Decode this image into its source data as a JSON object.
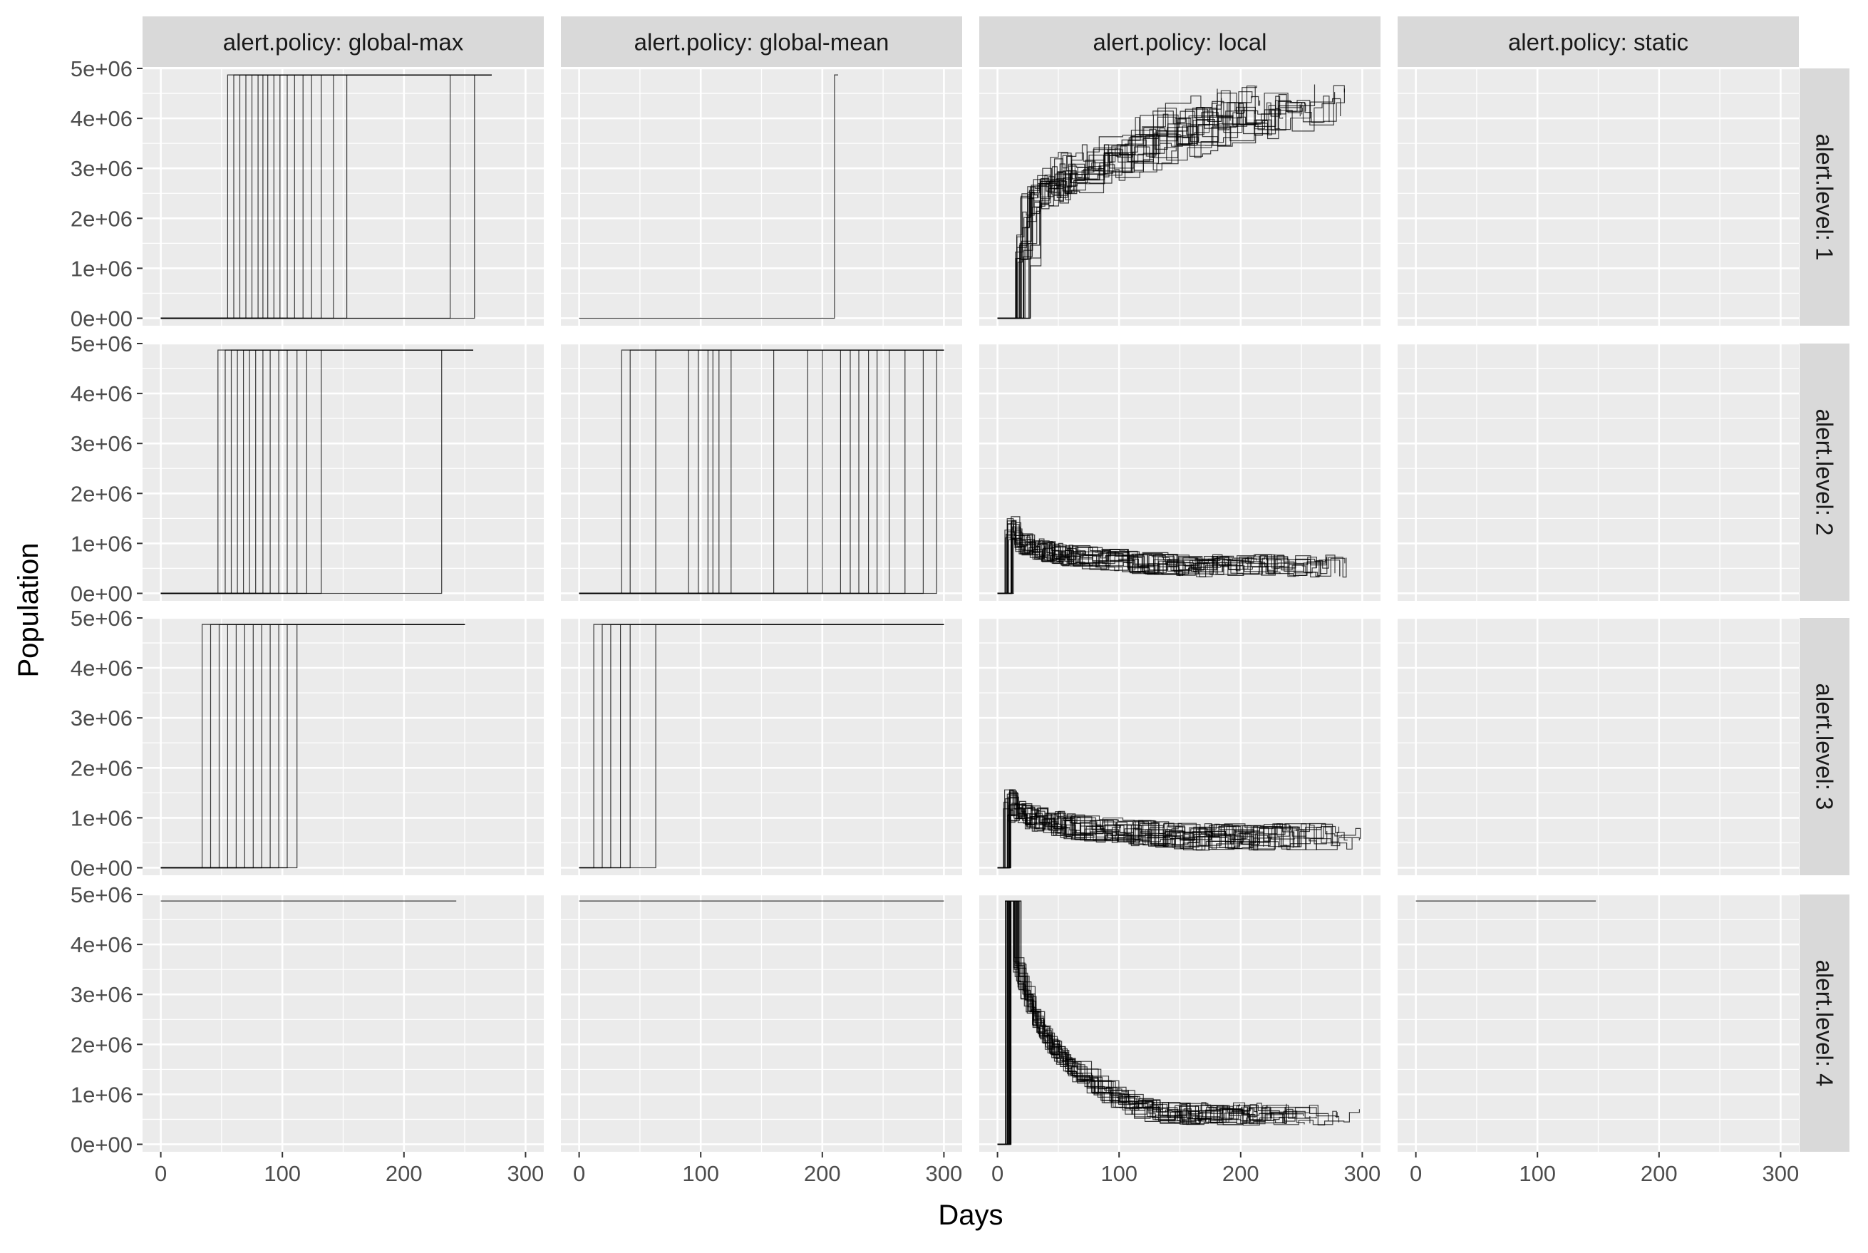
{
  "chart_data": {
    "type": "line",
    "facet_cols": [
      "alert.policy: global-max",
      "alert.policy: global-mean",
      "alert.policy: local",
      "alert.policy: static"
    ],
    "facet_rows": [
      "alert.level: 1",
      "alert.level: 2",
      "alert.level: 3",
      "alert.level: 4"
    ],
    "xlabel": "Days",
    "ylabel": "Population",
    "xlim": [
      -15,
      315
    ],
    "ylim": [
      -150000,
      5000000
    ],
    "x_ticks": [
      0,
      100,
      200,
      300
    ],
    "x_tick_labels": [
      "0",
      "100",
      "200",
      "300"
    ],
    "y_ticks": [
      0,
      1000000,
      2000000,
      3000000,
      4000000,
      5000000
    ],
    "y_tick_labels": [
      "0e+00",
      "1e+06",
      "2e+06",
      "3e+06",
      "4e+06",
      "5e+06"
    ],
    "grid": true,
    "colors": {
      "panel_bg": "#ebebeb",
      "strip_bg": "#d9d9d9",
      "grid": "#ffffff",
      "line": "#000000"
    },
    "panels": [
      {
        "row": 0,
        "col": 0,
        "kind": "switch",
        "low": 0,
        "high": 4870000,
        "x_start": 0,
        "switch_days": [
          55,
          60,
          65,
          70,
          75,
          80,
          84,
          88,
          93,
          98,
          104,
          110,
          117,
          124,
          132,
          142,
          153,
          238,
          258
        ],
        "x_end": 272
      },
      {
        "row": 0,
        "col": 1,
        "kind": "switch",
        "low": 0,
        "high": 4870000,
        "x_start": 0,
        "switch_days": [
          210
        ],
        "x_end": 213
      },
      {
        "row": 0,
        "col": 2,
        "kind": "local",
        "count": 20,
        "start": 0,
        "step0": 20,
        "level0": 1400000,
        "trend": "rise",
        "mid": 3500000,
        "end_level": 4300000,
        "spread": 900000,
        "x_end_min": 170,
        "x_end_max": 300,
        "seed": 11
      },
      {
        "row": 0,
        "col": 3,
        "kind": "none"
      },
      {
        "row": 1,
        "col": 0,
        "kind": "switch",
        "low": 0,
        "high": 4870000,
        "x_start": 0,
        "switch_days": [
          47,
          53,
          58,
          63,
          68,
          73,
          78,
          84,
          90,
          97,
          104,
          112,
          120,
          132,
          231
        ],
        "x_end": 257
      },
      {
        "row": 1,
        "col": 1,
        "kind": "switch",
        "low": 0,
        "high": 4870000,
        "x_start": 0,
        "switch_days": [
          35,
          42,
          63,
          90,
          98,
          106,
          110,
          115,
          125,
          160,
          188,
          200,
          215,
          223,
          230,
          238,
          245,
          255,
          268,
          283,
          294
        ],
        "x_end": 300
      },
      {
        "row": 1,
        "col": 2,
        "kind": "local",
        "count": 20,
        "start": 0,
        "step0": 10,
        "level0": 1300000,
        "trend": "decay",
        "mid": 800000,
        "end_level": 550000,
        "spread": 500000,
        "x_end_min": 150,
        "x_end_max": 295,
        "seed": 23
      },
      {
        "row": 1,
        "col": 3,
        "kind": "none"
      },
      {
        "row": 2,
        "col": 0,
        "kind": "switch",
        "low": 0,
        "high": 4870000,
        "x_start": 0,
        "switch_days": [
          34,
          41,
          48,
          55,
          62,
          69,
          76,
          83,
          90,
          97,
          104,
          112
        ],
        "x_end": 250
      },
      {
        "row": 2,
        "col": 1,
        "kind": "switch",
        "low": 0,
        "high": 4870000,
        "x_start": 0,
        "switch_days": [
          12,
          19,
          26,
          34,
          42,
          63
        ],
        "x_end": 300
      },
      {
        "row": 2,
        "col": 2,
        "kind": "local",
        "count": 20,
        "start": 0,
        "step0": 8,
        "level0": 1300000,
        "trend": "decay",
        "mid": 900000,
        "end_level": 620000,
        "spread": 600000,
        "x_end_min": 200,
        "x_end_max": 300,
        "seed": 37
      },
      {
        "row": 2,
        "col": 3,
        "kind": "none"
      },
      {
        "row": 3,
        "col": 0,
        "kind": "flat",
        "level": 4870000,
        "x_start": 0,
        "x_end": 243
      },
      {
        "row": 3,
        "col": 1,
        "kind": "flat",
        "level": 4870000,
        "x_start": 0,
        "x_end": 300
      },
      {
        "row": 3,
        "col": 2,
        "kind": "local",
        "count": 20,
        "start": 0,
        "step0": 8,
        "level0": 4870000,
        "trend": "drop",
        "mid": 1500000,
        "end_level": 600000,
        "spread": 500000,
        "x_end_min": 195,
        "x_end_max": 300,
        "seed": 53
      },
      {
        "row": 3,
        "col": 3,
        "kind": "flat",
        "level": 4870000,
        "x_start": 0,
        "x_end": 148
      }
    ]
  }
}
